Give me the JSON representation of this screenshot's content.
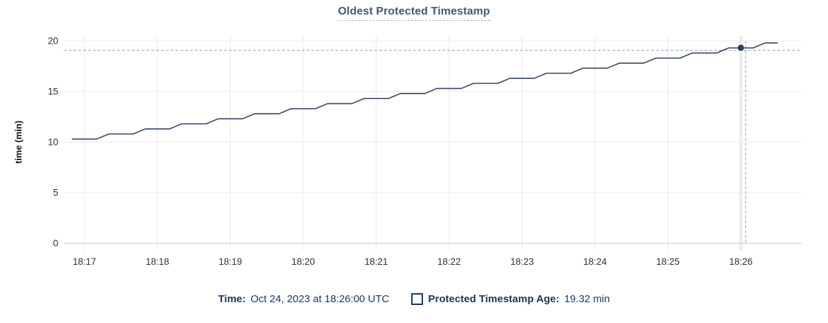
{
  "chart_data": {
    "type": "line",
    "title": "Oldest Protected Timestamp",
    "xlabel": "",
    "ylabel": "time (min)",
    "yticks": [
      0,
      5,
      10,
      15,
      20
    ],
    "ylim": [
      0,
      20
    ],
    "xtick_labels": [
      "18:17",
      "18:18",
      "18:19",
      "18:20",
      "18:21",
      "18:22",
      "18:23",
      "18:24",
      "18:25",
      "18:26"
    ],
    "xtick_sec": [
      0,
      60,
      120,
      180,
      240,
      300,
      360,
      420,
      480,
      540
    ],
    "xlim_sec": [
      -17,
      590
    ],
    "grid": true,
    "legend_position": "bottom",
    "series": [
      {
        "name": "Protected Timestamp Age",
        "color": "#3e4e67",
        "points_sec_min": [
          [
            -10,
            10.3
          ],
          [
            10,
            10.3
          ],
          [
            20,
            10.8
          ],
          [
            40,
            10.8
          ],
          [
            50,
            11.3
          ],
          [
            70,
            11.3
          ],
          [
            80,
            11.8
          ],
          [
            100,
            11.8
          ],
          [
            110,
            12.3
          ],
          [
            130,
            12.3
          ],
          [
            140,
            12.8
          ],
          [
            160,
            12.8
          ],
          [
            170,
            13.3
          ],
          [
            190,
            13.3
          ],
          [
            200,
            13.8
          ],
          [
            220,
            13.8
          ],
          [
            230,
            14.3
          ],
          [
            250,
            14.3
          ],
          [
            260,
            14.8
          ],
          [
            280,
            14.8
          ],
          [
            290,
            15.3
          ],
          [
            310,
            15.3
          ],
          [
            320,
            15.8
          ],
          [
            340,
            15.8
          ],
          [
            350,
            16.3
          ],
          [
            370,
            16.3
          ],
          [
            380,
            16.8
          ],
          [
            400,
            16.8
          ],
          [
            410,
            17.3
          ],
          [
            430,
            17.3
          ],
          [
            440,
            17.8
          ],
          [
            460,
            17.8
          ],
          [
            470,
            18.3
          ],
          [
            490,
            18.3
          ],
          [
            500,
            18.8
          ],
          [
            520,
            18.8
          ],
          [
            530,
            19.3
          ],
          [
            550,
            19.3
          ],
          [
            560,
            19.8
          ],
          [
            570,
            19.8
          ]
        ]
      }
    ],
    "crosshair": {
      "x_sec": 544,
      "y_min": 19.07
    },
    "hover_point": {
      "x_sec": 540,
      "y_min": 19.32,
      "series": "Protected Timestamp Age"
    }
  },
  "legend": {
    "time_label": "Time:",
    "time_value": "Oct 24, 2023 at 18:26:00 UTC",
    "series_label": "Protected Timestamp Age:",
    "series_value": "19.32 min"
  },
  "colors": {
    "title_text": "#475872",
    "accent_text": "#17365d",
    "line": "#3e4e67",
    "dot": "#2c3e5a",
    "crosshair": "#a3b7bd",
    "grid": "#f0f0f1",
    "axis": "#d9d9d9",
    "tick_label": "#2b2f36",
    "hover_band": "#ededee"
  }
}
